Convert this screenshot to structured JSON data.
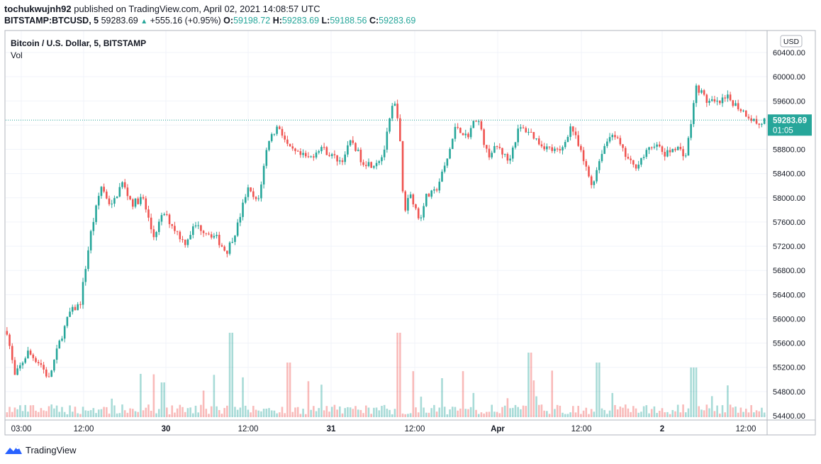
{
  "header": {
    "author": "tochukwujnh92",
    "published_text": "published on TradingView.com, April 02, 2021 14:08:57 UTC",
    "symbol": "BITSTAMP:BTCUSD, 5",
    "last_price": "59283.69",
    "change": "+555.16 (+0.95%)",
    "o_label": "O:",
    "o_value": "59198.72",
    "h_label": "H:",
    "h_value": "59283.69",
    "l_label": "L:",
    "l_value": "59188.56",
    "c_label": "C:",
    "c_value": "59283.69"
  },
  "legend": {
    "title": "Bitcoin / U.S. Dollar, 5, BITSTAMP",
    "vol_label": "Vol"
  },
  "price_axis": {
    "currency": "USD",
    "ticks": [
      "60400.00",
      "60000.00",
      "59600.00",
      "59200.00",
      "58800.00",
      "58400.00",
      "58000.00",
      "57600.00",
      "57200.00",
      "56800.00",
      "56400.00",
      "56000.00",
      "55600.00",
      "55200.00",
      "54800.00",
      "54400.00"
    ],
    "current_price": "59283.69",
    "countdown": "01:05"
  },
  "time_axis": {
    "ticks": [
      "03:00",
      "12:00",
      "30",
      "12:00",
      "31",
      "12:00",
      "Apr",
      "12:00",
      "2",
      "12:00"
    ]
  },
  "footer": {
    "brand": "TradingView"
  },
  "colors": {
    "up": "#26a69a",
    "down": "#ef5350",
    "grid": "#f0f3fa",
    "axis_text": "#131722"
  },
  "chart_data": {
    "type": "candlestick",
    "ylim": [
      54400,
      60400
    ],
    "y_ticks": [
      60400,
      60000,
      59600,
      59200,
      58800,
      58400,
      58000,
      57600,
      57200,
      56800,
      56400,
      56000,
      55600,
      55200,
      54800,
      54400
    ],
    "current_price": 59283.69,
    "x_ticks": [
      "03:00",
      "12:00",
      "30",
      "12:00",
      "31",
      "12:00",
      "Apr",
      "12:00",
      "2",
      "12:00"
    ],
    "price_path": [
      [
        0,
        55800
      ],
      [
        3,
        55050
      ],
      [
        8,
        55450
      ],
      [
        13,
        55250
      ],
      [
        16,
        55000
      ],
      [
        20,
        55600
      ],
      [
        24,
        56100
      ],
      [
        28,
        56250
      ],
      [
        32,
        57400
      ],
      [
        36,
        58200
      ],
      [
        40,
        57850
      ],
      [
        44,
        58250
      ],
      [
        48,
        57900
      ],
      [
        52,
        58000
      ],
      [
        56,
        57350
      ],
      [
        60,
        57750
      ],
      [
        64,
        57500
      ],
      [
        68,
        57250
      ],
      [
        72,
        57550
      ],
      [
        76,
        57450
      ],
      [
        80,
        57350
      ],
      [
        84,
        57100
      ],
      [
        88,
        57500
      ],
      [
        92,
        58150
      ],
      [
        96,
        57900
      ],
      [
        100,
        58950
      ],
      [
        104,
        59200
      ],
      [
        108,
        58800
      ],
      [
        112,
        58700
      ],
      [
        116,
        58650
      ],
      [
        120,
        58850
      ],
      [
        124,
        58700
      ],
      [
        128,
        58600
      ],
      [
        132,
        58950
      ],
      [
        136,
        58600
      ],
      [
        140,
        58550
      ],
      [
        144,
        58700
      ],
      [
        148,
        59600
      ],
      [
        150,
        59300
      ],
      [
        152,
        57700
      ],
      [
        154,
        58100
      ],
      [
        156,
        57900
      ],
      [
        158,
        57600
      ],
      [
        160,
        58000
      ],
      [
        164,
        58100
      ],
      [
        168,
        58550
      ],
      [
        172,
        59200
      ],
      [
        176,
        59000
      ],
      [
        180,
        59350
      ],
      [
        184,
        58700
      ],
      [
        188,
        58850
      ],
      [
        192,
        58600
      ],
      [
        196,
        59150
      ],
      [
        200,
        59100
      ],
      [
        204,
        58900
      ],
      [
        208,
        58800
      ],
      [
        212,
        58750
      ],
      [
        216,
        59200
      ],
      [
        220,
        58700
      ],
      [
        224,
        58200
      ],
      [
        228,
        58800
      ],
      [
        232,
        59100
      ],
      [
        236,
        58750
      ],
      [
        240,
        58500
      ],
      [
        244,
        58700
      ],
      [
        248,
        58900
      ],
      [
        252,
        58700
      ],
      [
        256,
        58850
      ],
      [
        260,
        58700
      ],
      [
        264,
        59850
      ],
      [
        268,
        59600
      ],
      [
        272,
        59550
      ],
      [
        276,
        59650
      ],
      [
        280,
        59500
      ],
      [
        284,
        59350
      ],
      [
        288,
        59200
      ],
      [
        290,
        59283
      ]
    ],
    "volume_spikes": [
      [
        60,
        0.35
      ],
      [
        86,
        0.85
      ],
      [
        108,
        0.55
      ],
      [
        150,
        0.85
      ],
      [
        200,
        0.65
      ],
      [
        226,
        0.55
      ],
      [
        263,
        0.5
      ]
    ]
  }
}
